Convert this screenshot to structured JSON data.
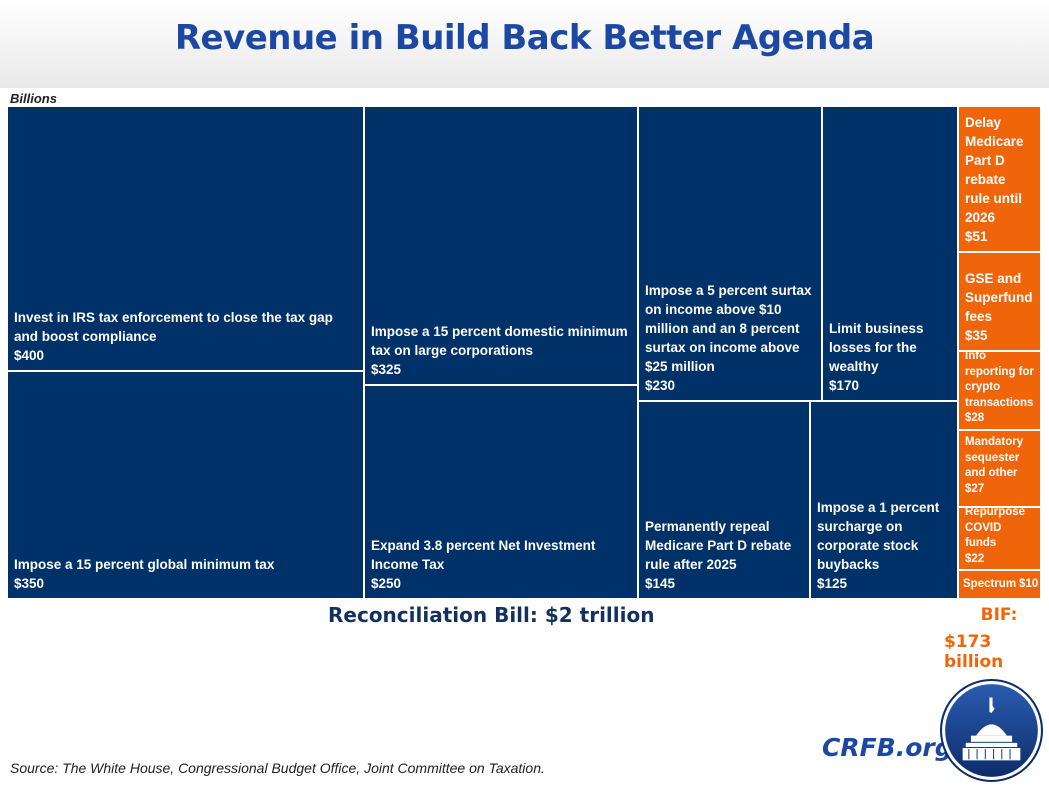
{
  "title": "Revenue in Build Back Better Agenda",
  "units_label": "Billions",
  "chart_data": {
    "type": "treemap",
    "title": "Revenue in Build Back Better Agenda",
    "units": "Billions",
    "groups": [
      {
        "name": "Reconciliation Bill",
        "total_label": "Reconciliation Bill: $2 trillion",
        "color": "#003168",
        "items": [
          {
            "label": "Invest in IRS tax enforcement to close the tax gap and boost compliance",
            "value": 400,
            "value_label": "$400"
          },
          {
            "label": "Impose a 15 percent global minimum tax",
            "value": 350,
            "value_label": "$350"
          },
          {
            "label": "Impose a 15 percent domestic minimum tax on large corporations",
            "value": 325,
            "value_label": "$325"
          },
          {
            "label": "Expand 3.8 percent Net Investment Income Tax",
            "value": 250,
            "value_label": "$250"
          },
          {
            "label": "Impose a 5 percent surtax on income above $10 million and an 8 percent surtax on income above $25 million",
            "value": 230,
            "value_label": "$230"
          },
          {
            "label": "Limit business losses for the wealthy",
            "value": 170,
            "value_label": "$170"
          },
          {
            "label": "Permanently repeal Medicare Part D rebate rule after 2025",
            "value": 145,
            "value_label": "$145"
          },
          {
            "label": "Impose a 1 percent surcharge on corporate stock buybacks",
            "value": 125,
            "value_label": "$125"
          }
        ]
      },
      {
        "name": "BIF",
        "total_label_1": "BIF:",
        "total_label_2": "$173 billion",
        "color": "#f0650a",
        "items": [
          {
            "label": "Delay Medicare Part D rebate rule until 2026",
            "value": 51,
            "value_label": "$51"
          },
          {
            "label": "GSE and Superfund fees",
            "value": 35,
            "value_label": "$35"
          },
          {
            "label": "Info reporting for crypto transactions",
            "value": 28,
            "value_label": "$28"
          },
          {
            "label": "Mandatory sequester and other",
            "value": 27,
            "value_label": "$27"
          },
          {
            "label": "Repurpose COVID funds",
            "value": 22,
            "value_label": "$22"
          },
          {
            "label": "Spectrum",
            "value": 10,
            "value_label": "$10"
          }
        ]
      }
    ]
  },
  "source": "Source: The White House, Congressional Budget Office, Joint Committee on Taxation.",
  "brand": "CRFB.org"
}
